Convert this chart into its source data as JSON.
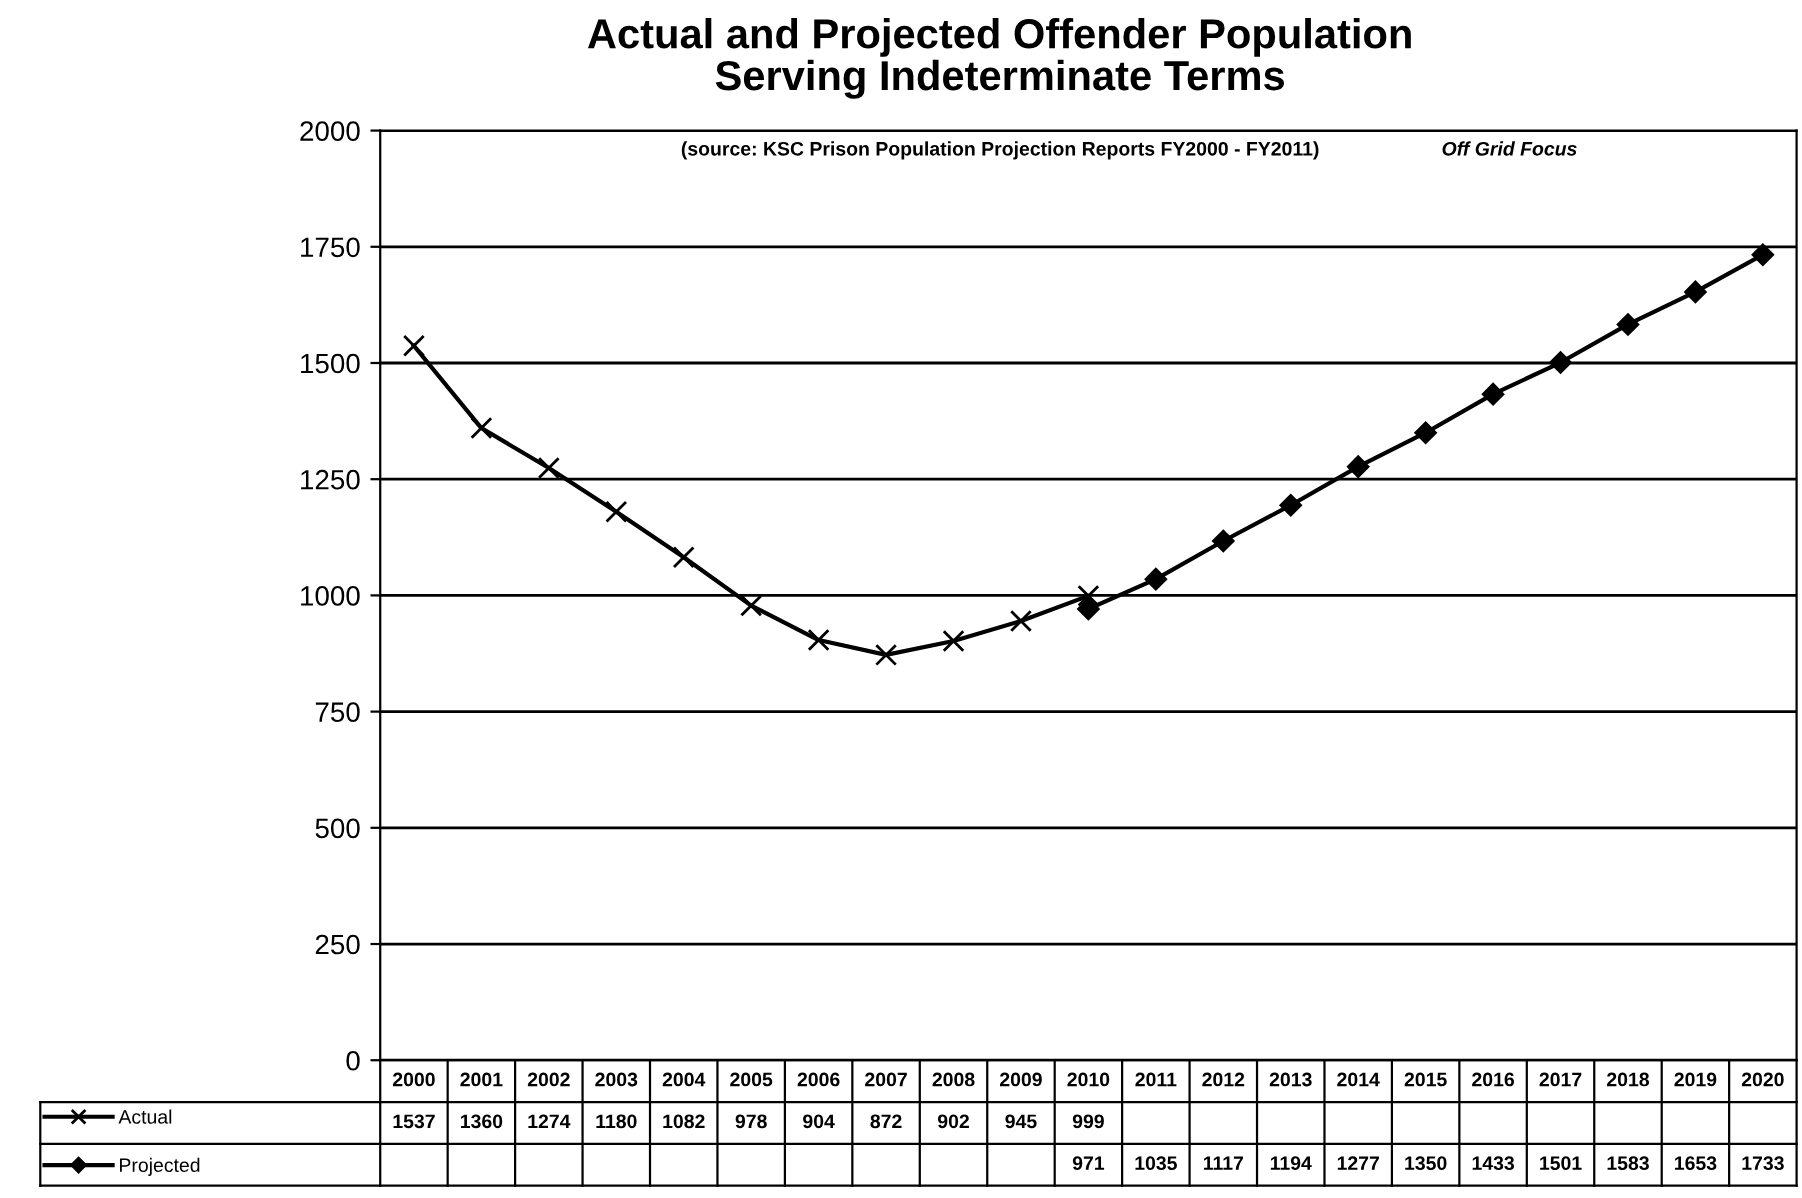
{
  "chart_data": {
    "type": "line",
    "title": "Actual and Projected Offender Population\nServing Indeterminate Terms",
    "subtitle": "(source: KSC Prison Population Projection Reports FY2000 - FY2011)",
    "annotations": [
      "Off Grid Focus"
    ],
    "categories": [
      "2000",
      "2001",
      "2002",
      "2003",
      "2004",
      "2005",
      "2006",
      "2007",
      "2008",
      "2009",
      "2010",
      "2011",
      "2012",
      "2013",
      "2014",
      "2015",
      "2016",
      "2017",
      "2018",
      "2019",
      "2020"
    ],
    "series": [
      {
        "name": "Actual",
        "color": "#000000",
        "marker": "cross",
        "values": [
          1537,
          1360,
          1274,
          1180,
          1082,
          978,
          904,
          872,
          902,
          945,
          999,
          null,
          null,
          null,
          null,
          null,
          null,
          null,
          null,
          null,
          null
        ]
      },
      {
        "name": "Projected",
        "color": "#000000",
        "marker": "diamond",
        "values": [
          null,
          null,
          null,
          null,
          null,
          null,
          null,
          null,
          null,
          null,
          971,
          1035,
          1117,
          1194,
          1277,
          1350,
          1433,
          1501,
          1583,
          1653,
          1733
        ]
      }
    ],
    "ylim": [
      0,
      2000
    ],
    "yticks": [
      0,
      250,
      500,
      750,
      1000,
      1250,
      1500,
      1750,
      2000
    ],
    "grid": "y",
    "legend": "bottom",
    "data_labels": true,
    "line_style": "solid"
  }
}
